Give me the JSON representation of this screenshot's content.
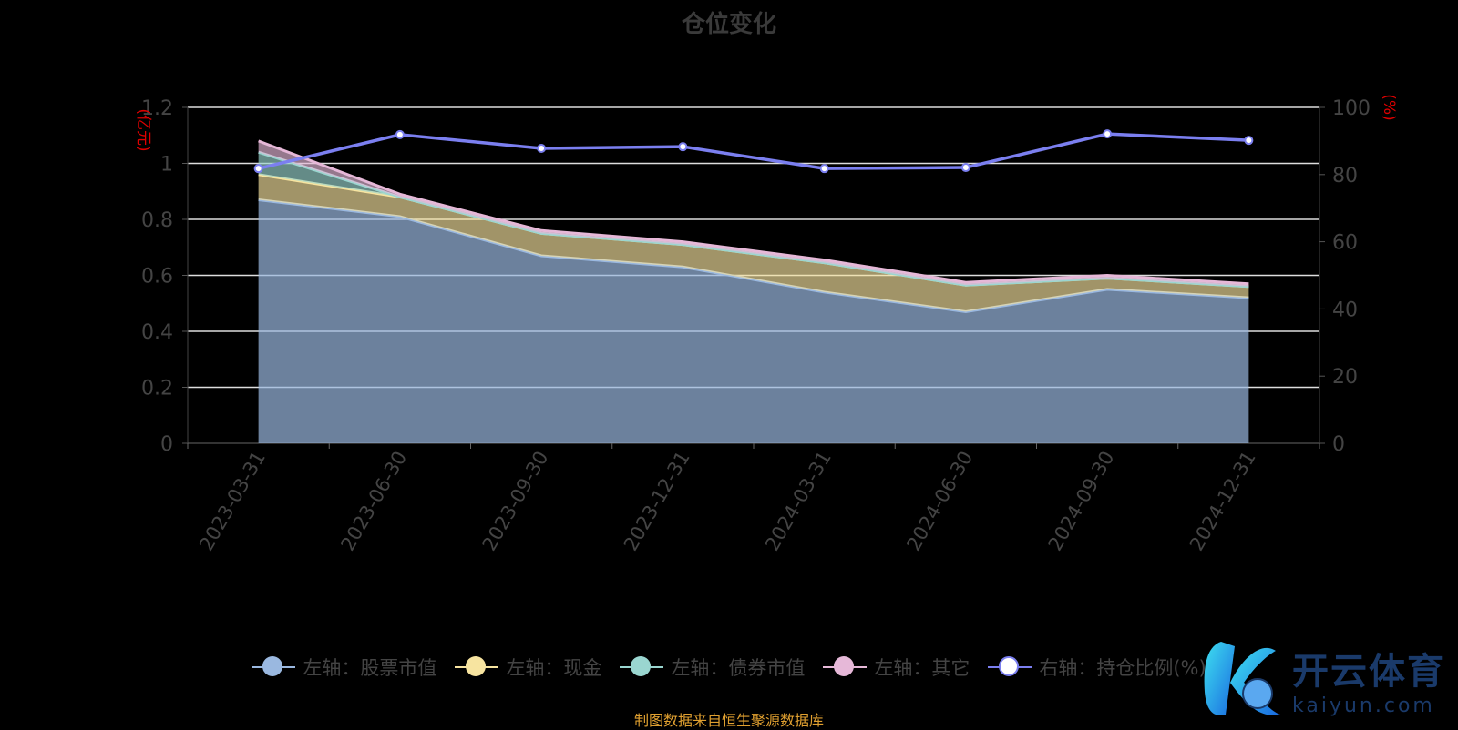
{
  "chart_data": {
    "type": "area",
    "stacked": true,
    "title": "仓位变化",
    "categories": [
      "2023-03-31",
      "2023-06-30",
      "2023-09-30",
      "2023-12-31",
      "2024-03-31",
      "2024-06-30",
      "2024-09-30",
      "2024-12-31"
    ],
    "y_left": {
      "label": "(亿元)",
      "range": [
        0,
        1.2
      ],
      "ticks": [
        "0",
        "0.2",
        "0.4",
        "0.6",
        "0.8",
        "1",
        "1.2"
      ]
    },
    "y_right": {
      "label": "(%)",
      "range": [
        0,
        100
      ],
      "ticks": [
        "0",
        "20",
        "40",
        "60",
        "80",
        "100"
      ]
    },
    "grid": true,
    "legend_position": "bottom",
    "series": [
      {
        "name": "左轴：股票市值",
        "axis": "left",
        "color": "#9ab8e0",
        "values": [
          0.87,
          0.81,
          0.67,
          0.63,
          0.54,
          0.47,
          0.55,
          0.52
        ]
      },
      {
        "name": "左轴：现金",
        "axis": "left",
        "color": "#f7e4a0",
        "values": [
          0.09,
          0.07,
          0.08,
          0.08,
          0.105,
          0.095,
          0.04,
          0.04
        ]
      },
      {
        "name": "左轴：债券市值",
        "axis": "left",
        "color": "#9ad6d0",
        "values": [
          0.08,
          0,
          0,
          0,
          0,
          0,
          0,
          0
        ]
      },
      {
        "name": "左轴：其它",
        "axis": "left",
        "color": "#e6b8d8",
        "values": [
          0.04,
          0.01,
          0.01,
          0.01,
          0.01,
          0.01,
          0.01,
          0.01
        ]
      },
      {
        "name": "右轴：持仓比例(%)",
        "axis": "right",
        "type": "line",
        "color": "#7b7ff0",
        "values": [
          81.8,
          91.9,
          87.8,
          88.3,
          81.8,
          82.1,
          92.1,
          90.2
        ]
      }
    ]
  },
  "footer": "制图数据来自恒生聚源数据库",
  "watermark": {
    "cn": "开云体育",
    "en": "kaiyun.com"
  }
}
